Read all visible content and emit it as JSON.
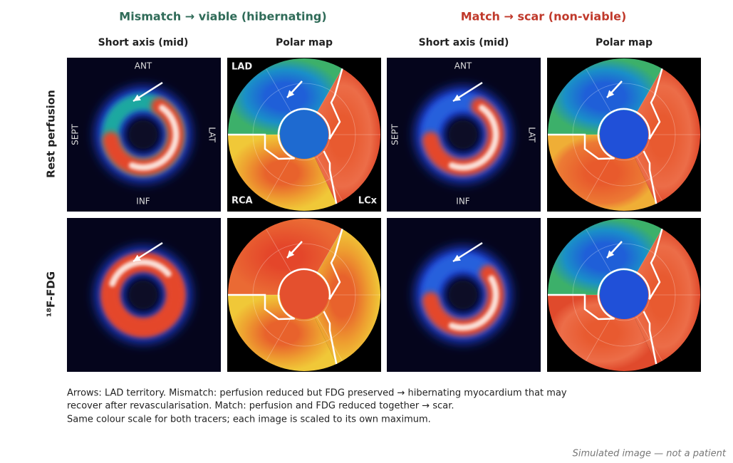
{
  "header": {
    "groups": [
      "Mismatch → viable (hibernating)",
      "Match → scar (non-viable)"
    ],
    "columns": [
      "Short axis (mid)",
      "Polar map",
      "Short axis (mid)",
      "Polar map"
    ]
  },
  "rows": [
    "Rest perfusion",
    "¹⁸F-FDG"
  ],
  "orientation": {
    "ant": "ANT",
    "inf": "INF",
    "sept": "SEPT",
    "lat": "LAT"
  },
  "territories": {
    "lad": "LAD",
    "rca": "RCA",
    "lcx": "LCx"
  },
  "caption": [
    "Arrows: LAD territory. Mismatch: perfusion reduced but FDG preserved → hibernating myocardium that may",
    "recover after revascularisation. Match: perfusion and FDG reduced together → scar.",
    "Same colour scale for both tracers; each image is scaled to its own maximum."
  ],
  "footer": "Simulated image — not a patient"
}
